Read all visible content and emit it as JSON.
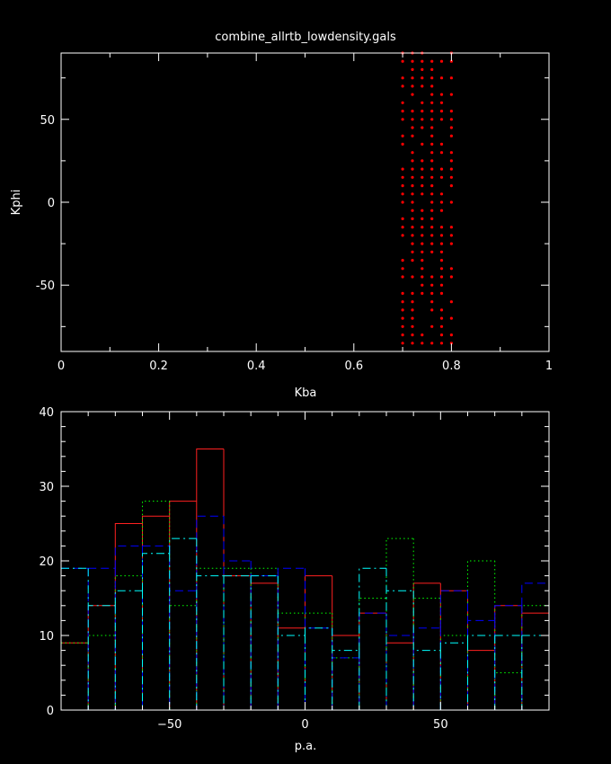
{
  "page": {
    "title": "combine_allrtb_lowdensity.gals"
  },
  "chart_data": [
    {
      "type": "scatter",
      "xlabel": "Kba",
      "ylabel": "Kphi",
      "xlim": [
        0,
        1
      ],
      "ylim": [
        -90,
        90
      ],
      "xticks": [
        0,
        0.2,
        0.4,
        0.6,
        0.8,
        1
      ],
      "yticks": [
        -50,
        0,
        50
      ],
      "point_color": "#ff0000",
      "x_columns": [
        0.7,
        0.72,
        0.74,
        0.76,
        0.78,
        0.8
      ],
      "y_grid": [
        -85,
        -80,
        -75,
        -70,
        -65,
        -60,
        -55,
        -50,
        -45,
        -40,
        -35,
        -30,
        -25,
        -20,
        -15,
        -10,
        -5,
        0,
        5,
        10,
        15,
        20,
        25,
        30,
        35,
        40,
        45,
        50,
        55,
        60,
        65,
        70,
        75,
        80,
        85,
        90
      ]
    },
    {
      "type": "histogram",
      "xlabel": "p.a.",
      "ylabel": "",
      "xlim": [
        -90,
        90
      ],
      "ylim": [
        0,
        40
      ],
      "xticks": [
        -50,
        0,
        50
      ],
      "yticks": [
        0,
        10,
        20,
        30,
        40
      ],
      "bin_edges": [
        -90,
        -80,
        -70,
        -60,
        -50,
        -40,
        -30,
        -20,
        -10,
        0,
        10,
        20,
        30,
        40,
        50,
        60,
        70,
        80,
        90
      ],
      "series": [
        {
          "color": "#ff2020",
          "style": "solid",
          "values": [
            9,
            14,
            25,
            26,
            28,
            35,
            18,
            17,
            11,
            18,
            10,
            13,
            9,
            17,
            16,
            8,
            14,
            13
          ]
        },
        {
          "color": "#00ff00",
          "style": "dotted",
          "values": [
            9,
            10,
            18,
            28,
            14,
            19,
            19,
            19,
            13,
            13,
            7,
            15,
            23,
            15,
            10,
            20,
            5,
            14
          ]
        },
        {
          "color": "#0000ff",
          "style": "dashed",
          "values": [
            19,
            19,
            22,
            22,
            16,
            26,
            20,
            18,
            19,
            11,
            7,
            13,
            10,
            11,
            16,
            12,
            14,
            17
          ]
        },
        {
          "color": "#00ffff",
          "style": "dashdot",
          "values": [
            19,
            14,
            16,
            21,
            23,
            18,
            18,
            18,
            10,
            11,
            8,
            19,
            16,
            8,
            9,
            10,
            10,
            10
          ]
        }
      ]
    }
  ]
}
